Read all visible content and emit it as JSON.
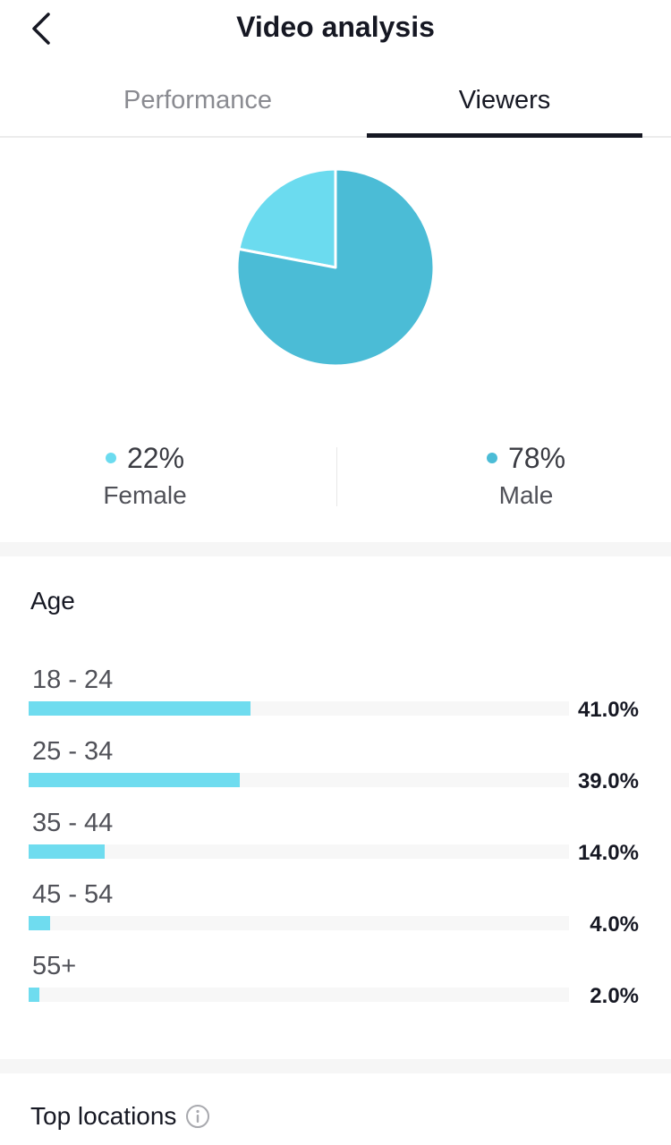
{
  "header": {
    "title": "Video analysis",
    "back_icon": "chevron-left-icon"
  },
  "tabs": [
    {
      "label": "Performance",
      "selected": false
    },
    {
      "label": "Viewers",
      "selected": true
    }
  ],
  "chart_data": {
    "type": "pie",
    "slices": [
      {
        "label": "Female",
        "value": 22,
        "color": "#6BDBEF"
      },
      {
        "label": "Male",
        "value": 78,
        "color": "#4BBCD6"
      }
    ]
  },
  "gender": {
    "female": {
      "value": "22%",
      "label": "Female",
      "color": "#6BDBEF"
    },
    "male": {
      "value": "78%",
      "label": "Male",
      "color": "#4BBCD6"
    }
  },
  "age": {
    "title": "Age",
    "bar_color": "#6FDCEF",
    "rows": [
      {
        "label": "18 - 24",
        "value": 41.0,
        "pct": "41.0%"
      },
      {
        "label": "25 - 34",
        "value": 39.0,
        "pct": "39.0%"
      },
      {
        "label": "35 - 44",
        "value": 14.0,
        "pct": "14.0%"
      },
      {
        "label": "45 - 54",
        "value": 4.0,
        "pct": "4.0%"
      },
      {
        "label": "55+",
        "value": 2.0,
        "pct": "2.0%"
      }
    ]
  },
  "top_locations": {
    "title": "Top locations",
    "info_icon": "info-icon"
  }
}
